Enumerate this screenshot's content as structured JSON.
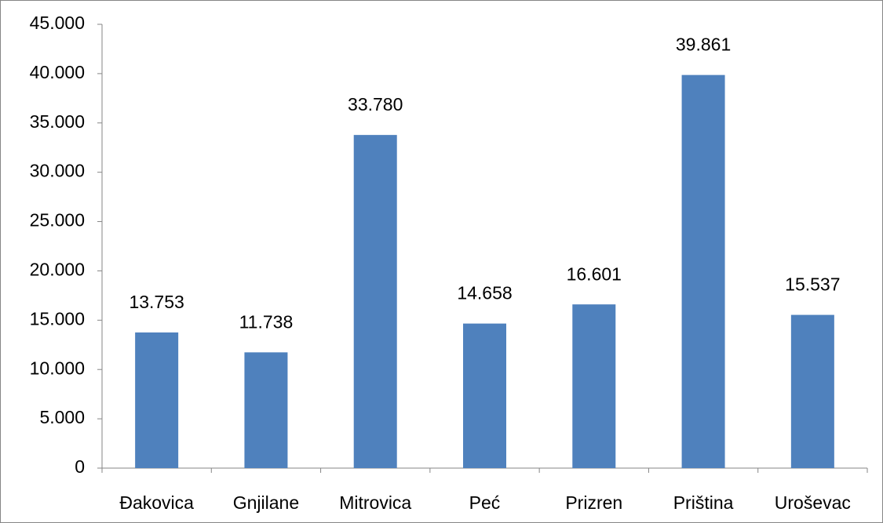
{
  "chart_data": {
    "type": "bar",
    "categories": [
      "Đakovica",
      "Gnjilane",
      "Mitrovica",
      "Peć",
      "Prizren",
      "Priština",
      "Uroševac"
    ],
    "values": [
      13753,
      11738,
      33780,
      14658,
      16601,
      39861,
      15537
    ],
    "value_labels": [
      "13.753",
      "11.738",
      "33.780",
      "14.658",
      "16.601",
      "39.861",
      "15.537"
    ],
    "color": "#4f81bd",
    "ylim": [
      0,
      45000
    ],
    "yticks": [
      0,
      {
        "value": 5000,
        "label": "5.000"
      },
      {
        "value": 10000,
        "label": "10.000"
      },
      {
        "value": 15000,
        "label": "15.000"
      },
      {
        "value": 20000,
        "label": "20.000"
      },
      {
        "value": 25000,
        "label": "25.000"
      },
      {
        "value": 30000,
        "label": "30.000"
      },
      {
        "value": 35000,
        "label": "35.000"
      },
      {
        "value": 40000,
        "label": "40.000"
      },
      {
        "value": 45000,
        "label": "45.000"
      }
    ],
    "grid": false
  }
}
